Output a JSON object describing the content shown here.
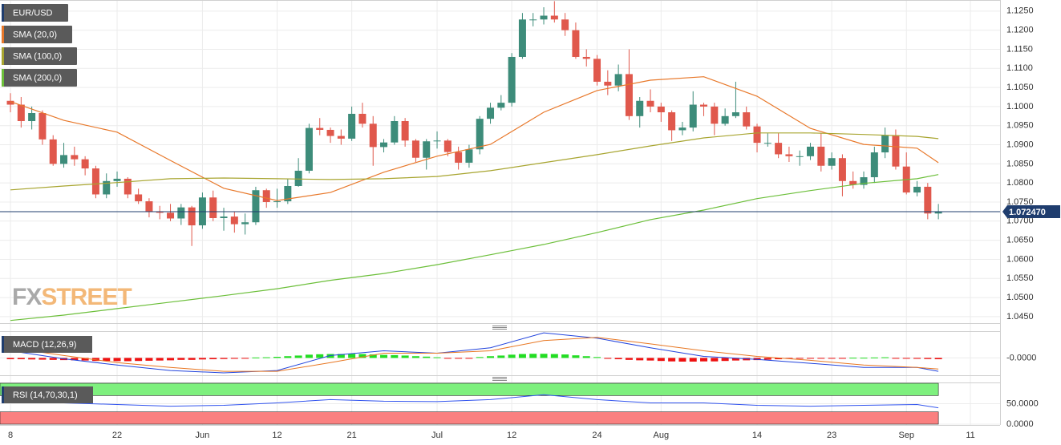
{
  "chart_data": {
    "type": "candlestick",
    "symbol": "EUR/USD",
    "x": [
      0,
      1,
      2,
      3,
      4,
      5,
      6,
      7,
      8,
      9,
      10,
      11,
      12,
      13,
      14,
      15,
      16,
      17,
      18,
      19,
      20,
      21,
      22,
      23,
      24,
      25,
      26,
      27,
      28,
      29,
      30,
      31,
      32,
      33,
      34,
      35,
      36,
      37,
      38,
      39,
      40,
      41,
      42,
      43,
      44,
      45,
      46,
      47,
      48,
      49,
      50,
      51,
      52,
      53,
      54,
      55,
      56,
      57,
      58,
      59,
      60,
      61,
      62,
      63,
      64,
      65,
      66,
      67,
      68,
      69,
      70,
      71,
      72,
      73,
      74,
      75,
      76,
      77,
      78,
      79,
      80,
      81,
      82,
      83,
      84,
      85,
      86,
      87
    ],
    "open": [
      1.1015,
      1.1005,
      1.0962,
      1.0983,
      1.0914,
      1.085,
      1.0873,
      1.0862,
      1.0838,
      1.077,
      1.0805,
      1.0811,
      1.077,
      1.0752,
      1.0724,
      1.0722,
      1.0707,
      1.0736,
      1.0689,
      1.0762,
      1.0708,
      1.0712,
      1.0692,
      1.0697,
      1.0781,
      1.075,
      1.0752,
      1.0792,
      1.0832,
      1.0944,
      1.0939,
      1.0923,
      1.0916,
      1.0981,
      1.0955,
      1.0894,
      1.0906,
      1.0962,
      1.0911,
      1.0866,
      1.0909,
      1.0911,
      1.0881,
      1.0853,
      1.0888,
      1.0968,
      1.0997,
      1.101,
      1.113,
      1.1228,
      1.1228,
      1.1238,
      1.1228,
      1.12,
      1.113,
      1.1125,
      1.1065,
      1.1055,
      1.1085,
      1.0975,
      1.1015,
      1.1,
      1.0985,
      1.0938,
      1.0945,
      1.1005,
      1.1,
      1.0955,
      1.0975,
      1.0985,
      1.0948,
      1.0905,
      1.0905,
      1.0875,
      1.087,
      1.087,
      1.0895,
      1.0845,
      1.0865,
      1.0805,
      1.0795,
      1.0815,
      1.088,
      1.0925,
      1.0843,
      1.0775,
      1.079,
      1.072
    ],
    "high": [
      1.1035,
      1.1025,
      1.1,
      1.099,
      1.0925,
      1.0905,
      1.0895,
      1.087,
      1.0845,
      1.0825,
      1.083,
      1.0815,
      1.0785,
      1.076,
      1.074,
      1.0745,
      1.0745,
      1.074,
      1.0775,
      1.078,
      1.0735,
      1.0725,
      1.072,
      1.079,
      1.0785,
      1.0785,
      1.081,
      1.0865,
      1.0955,
      1.097,
      1.0945,
      1.094,
      1.1,
      1.101,
      1.0975,
      1.0915,
      1.0975,
      1.097,
      1.0915,
      1.0915,
      1.0935,
      1.0915,
      1.0895,
      1.09,
      1.0975,
      1.101,
      1.103,
      1.114,
      1.1245,
      1.1245,
      1.126,
      1.1276,
      1.1245,
      1.122,
      1.115,
      1.1135,
      1.1095,
      1.111,
      1.115,
      1.1025,
      1.1045,
      1.101,
      1.099,
      1.096,
      1.104,
      1.101,
      1.101,
      1.0995,
      1.1065,
      1.1,
      1.0955,
      1.093,
      1.093,
      1.0895,
      1.0885,
      1.0905,
      1.093,
      1.088,
      1.0875,
      1.083,
      1.083,
      1.0895,
      1.0945,
      1.094,
      1.088,
      1.0805,
      1.08,
      1.0745
    ],
    "low": [
      1.0985,
      1.0945,
      1.094,
      1.09,
      1.0845,
      1.084,
      1.0845,
      1.082,
      1.076,
      1.076,
      1.079,
      1.076,
      1.0745,
      1.071,
      1.0705,
      1.07,
      1.069,
      1.0635,
      1.068,
      1.07,
      1.0675,
      1.067,
      1.0665,
      1.069,
      1.0735,
      1.0735,
      1.0745,
      1.079,
      1.0825,
      1.0925,
      1.0905,
      1.09,
      1.091,
      1.0945,
      1.0845,
      1.088,
      1.09,
      1.0895,
      1.0855,
      1.0835,
      1.089,
      1.087,
      1.0835,
      1.084,
      1.0875,
      1.0955,
      1.099,
      1.1,
      1.1125,
      1.121,
      1.1215,
      1.122,
      1.1185,
      1.1125,
      1.1105,
      1.1055,
      1.103,
      1.104,
      1.0965,
      1.0945,
      1.0985,
      1.096,
      1.091,
      1.0925,
      1.0935,
      1.0975,
      1.0925,
      1.095,
      1.097,
      1.094,
      1.088,
      1.0895,
      1.0865,
      1.0855,
      1.0845,
      1.086,
      1.083,
      1.0835,
      1.0765,
      1.0785,
      1.0785,
      1.08,
      1.0865,
      1.0835,
      1.077,
      1.0765,
      1.0705,
      1.0705
    ],
    "close": [
      1.1005,
      1.0962,
      1.0983,
      1.0914,
      1.085,
      1.0873,
      1.0862,
      1.0838,
      1.077,
      1.0805,
      1.0811,
      1.077,
      1.0752,
      1.0724,
      1.0722,
      1.0707,
      1.0736,
      1.0689,
      1.0762,
      1.0708,
      1.0712,
      1.0692,
      1.0697,
      1.0781,
      1.075,
      1.0752,
      1.0792,
      1.0832,
      1.0944,
      1.0939,
      1.0923,
      1.0916,
      1.0981,
      1.0955,
      1.0894,
      1.0906,
      1.0962,
      1.0911,
      1.0866,
      1.0909,
      1.0911,
      1.0881,
      1.0853,
      1.0888,
      1.0968,
      1.0997,
      1.101,
      1.113,
      1.1228,
      1.1228,
      1.1238,
      1.1228,
      1.12,
      1.113,
      1.1125,
      1.1065,
      1.1055,
      1.1085,
      1.0975,
      1.1015,
      1.1,
      1.0985,
      1.0938,
      1.0945,
      1.1005,
      1.1,
      1.0955,
      1.0975,
      1.0985,
      1.0948,
      1.0905,
      1.0905,
      1.0875,
      1.087,
      1.087,
      1.0895,
      1.0845,
      1.0865,
      1.0805,
      1.0795,
      1.0815,
      1.088,
      1.0925,
      1.0843,
      1.0775,
      1.079,
      1.072,
      1.07247
    ],
    "up_color": "#3d8c7a",
    "down_color": "#e0584c",
    "xlim": [
      -0.98,
      92.78
    ],
    "xticks": [
      {
        "value": 0,
        "label": "8"
      },
      {
        "value": 10,
        "label": "22"
      },
      {
        "value": 18,
        "label": "Jun"
      },
      {
        "value": 25,
        "label": "12"
      },
      {
        "value": 32,
        "label": "21"
      },
      {
        "value": 40,
        "label": "Jul"
      },
      {
        "value": 47,
        "label": "12"
      },
      {
        "value": 55,
        "label": "24"
      },
      {
        "value": 61,
        "label": "Aug"
      },
      {
        "value": 70,
        "label": "14"
      },
      {
        "value": 77,
        "label": "23"
      },
      {
        "value": 84,
        "label": "Sep"
      },
      {
        "value": 90,
        "label": "11"
      }
    ],
    "ylim": [
      1.0433,
      1.1279
    ],
    "yticks": [
      {
        "value": 1.045,
        "label": "1.0450"
      },
      {
        "value": 1.05,
        "label": "1.0500"
      },
      {
        "value": 1.055,
        "label": "1.0550"
      },
      {
        "value": 1.06,
        "label": "1.0600"
      },
      {
        "value": 1.065,
        "label": "1.0650"
      },
      {
        "value": 1.07,
        "label": "1.0700"
      },
      {
        "value": 1.075,
        "label": "1.0750"
      },
      {
        "value": 1.08,
        "label": "1.0800"
      },
      {
        "value": 1.085,
        "label": "1.0850"
      },
      {
        "value": 1.09,
        "label": "1.0900"
      },
      {
        "value": 1.095,
        "label": "1.0950"
      },
      {
        "value": 1.1,
        "label": "1.1000"
      },
      {
        "value": 1.105,
        "label": "1.1050"
      },
      {
        "value": 1.11,
        "label": "1.1100"
      },
      {
        "value": 1.115,
        "label": "1.1150"
      },
      {
        "value": 1.12,
        "label": "1.1200"
      },
      {
        "value": 1.125,
        "label": "1.1250"
      }
    ],
    "grid": true,
    "last_price": {
      "value": 1.07247,
      "label": "1.072470"
    },
    "watermark": [
      "FX",
      "STREET"
    ],
    "overlays": [
      {
        "name": "SMA (20,0)",
        "color": "#e8782a",
        "x": [
          0,
          5,
          10,
          15,
          20,
          25,
          30,
          35,
          40,
          45,
          50,
          55,
          60,
          65,
          70,
          75,
          80,
          85,
          87
        ],
        "values": [
          1.1013,
          1.0964,
          1.0933,
          1.0859,
          1.0786,
          1.0754,
          1.0775,
          1.0828,
          1.087,
          1.0901,
          1.0985,
          1.1042,
          1.1069,
          1.1078,
          1.1027,
          1.0943,
          1.0901,
          1.0891,
          1.0853
        ]
      },
      {
        "name": "SMA (100,0)",
        "color": "#a8a530",
        "x": [
          0,
          5,
          10,
          15,
          20,
          25,
          30,
          35,
          40,
          45,
          50,
          55,
          60,
          65,
          70,
          75,
          80,
          85,
          87
        ],
        "values": [
          1.0782,
          1.0792,
          1.0801,
          1.0811,
          1.0813,
          1.0811,
          1.0809,
          1.0811,
          1.0817,
          1.0832,
          1.0853,
          1.0874,
          1.0897,
          1.0918,
          1.0931,
          1.0931,
          1.0927,
          1.0922,
          1.0916
        ]
      },
      {
        "name": "SMA (200,0)",
        "color": "#6cbf3a",
        "x": [
          0,
          5,
          10,
          15,
          20,
          25,
          30,
          35,
          40,
          45,
          50,
          55,
          60,
          65,
          70,
          75,
          80,
          85,
          87
        ],
        "values": [
          1.044,
          1.0454,
          1.0471,
          1.0488,
          1.0505,
          1.0523,
          1.0545,
          1.0563,
          1.0586,
          1.0612,
          1.0639,
          1.067,
          1.0704,
          1.0729,
          1.0759,
          1.078,
          1.0799,
          1.0811,
          1.0822
        ]
      }
    ],
    "indicators": [
      {
        "type": "macd",
        "name": "MACD (12,26,9)",
        "ylim": [
          -0.008,
          0.012
        ],
        "yticks": [
          {
            "value": 0,
            "label": "-0.0000"
          }
        ],
        "histogram": {
          "up_color": "#22dd22",
          "down_color": "#ee1111",
          "values": [
            -0.0006,
            -0.0006,
            -0.0007,
            -0.0008,
            -0.0009,
            -0.001,
            -0.0011,
            -0.0012,
            -0.0014,
            -0.0014,
            -0.0015,
            -0.0015,
            -0.0014,
            -0.0013,
            -0.0012,
            -0.0011,
            -0.0009,
            -0.0009,
            -0.0007,
            -0.0006,
            -0.0005,
            -0.0004,
            -0.0003,
            0.0002,
            0.0003,
            0.0005,
            0.0008,
            0.0011,
            0.0015,
            0.0017,
            0.0018,
            0.0018,
            0.0019,
            0.0018,
            0.0016,
            0.0014,
            0.0013,
            0.0011,
            0.0008,
            0.0006,
            0.0003,
            -0.0002,
            -0.0003,
            -0.0002,
            0.0004,
            0.0008,
            0.0011,
            0.0015,
            0.0018,
            0.0019,
            0.0019,
            0.0018,
            0.0016,
            0.0012,
            0.0008,
            0.0004,
            -0.0004,
            -0.0006,
            -0.0009,
            -0.0011,
            -0.0012,
            -0.0014,
            -0.0016,
            -0.0017,
            -0.0017,
            -0.0016,
            -0.0016,
            -0.0014,
            -0.0012,
            -0.0011,
            -0.001,
            -0.0008,
            -0.0006,
            -0.0004,
            -0.0003,
            -0.0002,
            -0.0002,
            -0.0001,
            -0.0001,
            0.0001,
            0.0001,
            0.0002,
            0.0003,
            -0.0001,
            -0.0003,
            -0.0004,
            -0.0005,
            -0.0006
          ]
        },
        "series": [
          {
            "color": "#2244dd",
            "x": [
              0,
              5,
              10,
              15,
              20,
              25,
              30,
              35,
              40,
              45,
              50,
              55,
              60,
              65,
              70,
              75,
              80,
              85,
              87
            ],
            "values": [
              0.0033,
              -0.0004,
              -0.0033,
              -0.0058,
              -0.0069,
              -0.0058,
              0.0011,
              0.0033,
              0.0022,
              0.0047,
              0.0116,
              0.0091,
              0.0047,
              0.0007,
              -0.0007,
              -0.0025,
              -0.0044,
              -0.0044,
              -0.0062
            ]
          },
          {
            "color": "#e87722",
            "x": [
              0,
              5,
              10,
              15,
              20,
              25,
              30,
              35,
              40,
              45,
              50,
              55,
              60,
              65,
              70,
              75,
              80,
              85,
              87
            ],
            "values": [
              0.0047,
              0.0011,
              -0.0022,
              -0.0044,
              -0.0062,
              -0.0062,
              -0.0022,
              0.0022,
              0.0022,
              0.0033,
              0.008,
              0.0095,
              0.0065,
              0.0033,
              0.0007,
              -0.0011,
              -0.0033,
              -0.0044,
              -0.0051
            ]
          }
        ]
      },
      {
        "type": "rsi",
        "name": "RSI (14,70,30,1)",
        "ylim": [
          0,
          100
        ],
        "yticks": [
          {
            "value": 50,
            "label": "50.0000"
          },
          {
            "value": 0,
            "label": "0.0000"
          }
        ],
        "overbought": 70,
        "oversold": 30,
        "overbought_color": "#7ef07e",
        "oversold_color": "#fa8080",
        "series": [
          {
            "color": "#3355ee",
            "x": [
              0,
              5,
              10,
              15,
              20,
              25,
              30,
              35,
              40,
              45,
              50,
              55,
              60,
              65,
              70,
              75,
              80,
              85,
              87
            ],
            "values": [
              58,
              52,
              48,
              44,
              46,
              52,
              60,
              56,
              55,
              60,
              72,
              60,
              52,
              52,
              46,
              44,
              46,
              48,
              40
            ]
          }
        ]
      }
    ]
  }
}
